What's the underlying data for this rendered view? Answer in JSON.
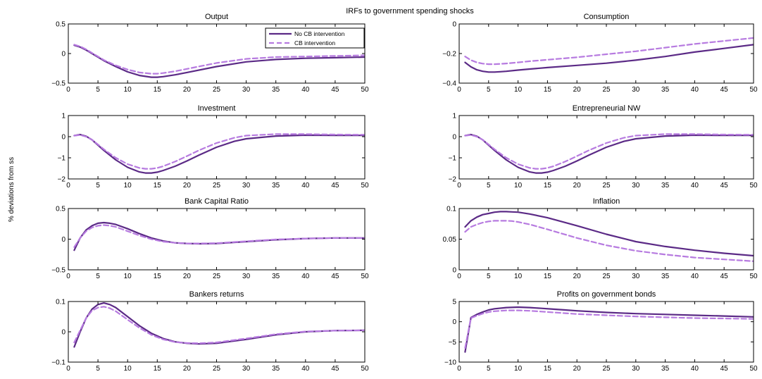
{
  "figure": {
    "title": "IRFs to government spending shocks",
    "ylabel": "% deviations from ss"
  },
  "legend": {
    "items": [
      {
        "label": "No CB intervention",
        "color": "#5b2a86",
        "dash": "solid"
      },
      {
        "label": "CB intervention",
        "color": "#b77be0",
        "dash": "dashed"
      }
    ]
  },
  "chart_data": [
    {
      "type": "line",
      "title": "Output",
      "xlim": [
        0,
        50
      ],
      "ylim": [
        -0.5,
        0.5
      ],
      "xticks": [
        0,
        5,
        10,
        15,
        20,
        25,
        30,
        35,
        40,
        45,
        50
      ],
      "yticks": [
        -0.5,
        0,
        0.5
      ],
      "ytick_labels": [
        "−0.5",
        "0",
        "0.5"
      ],
      "series": [
        {
          "name": "No CB intervention",
          "x": [
            1,
            2,
            3,
            4,
            5,
            6,
            8,
            10,
            12,
            14,
            15,
            16,
            18,
            20,
            25,
            30,
            35,
            40,
            45,
            50
          ],
          "values": [
            0.14,
            0.11,
            0.06,
            0.0,
            -0.06,
            -0.12,
            -0.22,
            -0.31,
            -0.37,
            -0.4,
            -0.4,
            -0.39,
            -0.36,
            -0.32,
            -0.22,
            -0.14,
            -0.1,
            -0.08,
            -0.07,
            -0.06
          ]
        },
        {
          "name": "CB intervention",
          "x": [
            1,
            2,
            3,
            4,
            5,
            6,
            8,
            10,
            12,
            14,
            15,
            16,
            18,
            20,
            25,
            30,
            35,
            40,
            45,
            50
          ],
          "values": [
            0.15,
            0.12,
            0.07,
            0.01,
            -0.05,
            -0.11,
            -0.2,
            -0.27,
            -0.32,
            -0.34,
            -0.34,
            -0.33,
            -0.3,
            -0.26,
            -0.16,
            -0.09,
            -0.06,
            -0.05,
            -0.04,
            -0.03
          ]
        }
      ]
    },
    {
      "type": "line",
      "title": "Consumption",
      "xlim": [
        0,
        50
      ],
      "ylim": [
        -0.4,
        0
      ],
      "xticks": [
        0,
        5,
        10,
        15,
        20,
        25,
        30,
        35,
        40,
        45,
        50
      ],
      "yticks": [
        -0.4,
        -0.2,
        0
      ],
      "ytick_labels": [
        "−0.4",
        "−0.2",
        "0"
      ],
      "series": [
        {
          "name": "No CB intervention",
          "x": [
            1,
            2,
            3,
            4,
            5,
            6,
            7,
            8,
            10,
            12,
            15,
            20,
            25,
            30,
            35,
            40,
            45,
            50
          ],
          "values": [
            -0.26,
            -0.29,
            -0.31,
            -0.32,
            -0.325,
            -0.325,
            -0.323,
            -0.32,
            -0.312,
            -0.305,
            -0.295,
            -0.28,
            -0.265,
            -0.245,
            -0.22,
            -0.19,
            -0.165,
            -0.14
          ]
        },
        {
          "name": "CB intervention",
          "x": [
            1,
            2,
            3,
            4,
            5,
            6,
            7,
            8,
            10,
            12,
            15,
            20,
            25,
            30,
            35,
            40,
            45,
            50
          ],
          "values": [
            -0.22,
            -0.245,
            -0.26,
            -0.268,
            -0.272,
            -0.272,
            -0.27,
            -0.267,
            -0.26,
            -0.252,
            -0.242,
            -0.225,
            -0.205,
            -0.185,
            -0.16,
            -0.135,
            -0.115,
            -0.095
          ]
        }
      ]
    },
    {
      "type": "line",
      "title": "Investment",
      "xlim": [
        0,
        50
      ],
      "ylim": [
        -2,
        1
      ],
      "xticks": [
        0,
        5,
        10,
        15,
        20,
        25,
        30,
        35,
        40,
        45,
        50
      ],
      "yticks": [
        -2,
        -1,
        0,
        1
      ],
      "ytick_labels": [
        "−2",
        "−1",
        "0",
        "1"
      ],
      "series": [
        {
          "name": "No CB intervention",
          "x": [
            1,
            2,
            3,
            4,
            5,
            6,
            8,
            10,
            12,
            13,
            14,
            15,
            16,
            18,
            20,
            22,
            25,
            28,
            30,
            35,
            40,
            45,
            50
          ],
          "values": [
            0.05,
            0.1,
            0.02,
            -0.15,
            -0.4,
            -0.65,
            -1.1,
            -1.45,
            -1.67,
            -1.72,
            -1.72,
            -1.68,
            -1.6,
            -1.4,
            -1.15,
            -0.88,
            -0.5,
            -0.22,
            -0.1,
            0.03,
            0.07,
            0.06,
            0.06
          ]
        },
        {
          "name": "CB intervention",
          "x": [
            1,
            2,
            3,
            4,
            5,
            6,
            8,
            10,
            12,
            13,
            14,
            15,
            16,
            18,
            20,
            22,
            25,
            28,
            30,
            35,
            40,
            45,
            50
          ],
          "values": [
            0.05,
            0.08,
            0.0,
            -0.15,
            -0.37,
            -0.6,
            -1.0,
            -1.3,
            -1.48,
            -1.52,
            -1.52,
            -1.48,
            -1.4,
            -1.18,
            -0.92,
            -0.65,
            -0.3,
            -0.05,
            0.05,
            0.12,
            0.12,
            0.1,
            0.09
          ]
        }
      ]
    },
    {
      "type": "line",
      "title": "Entrepreneurial NW",
      "xlim": [
        0,
        50
      ],
      "ylim": [
        -2,
        1
      ],
      "xticks": [
        0,
        5,
        10,
        15,
        20,
        25,
        30,
        35,
        40,
        45,
        50
      ],
      "yticks": [
        -2,
        -1,
        0,
        1
      ],
      "ytick_labels": [
        "−2",
        "−1",
        "0",
        "1"
      ],
      "series": [
        {
          "name": "No CB intervention",
          "x": [
            1,
            2,
            3,
            4,
            5,
            6,
            8,
            10,
            12,
            13,
            14,
            15,
            16,
            18,
            20,
            22,
            25,
            28,
            30,
            35,
            40,
            45,
            50
          ],
          "values": [
            0.05,
            0.1,
            0.02,
            -0.15,
            -0.4,
            -0.65,
            -1.1,
            -1.45,
            -1.67,
            -1.72,
            -1.72,
            -1.68,
            -1.6,
            -1.4,
            -1.15,
            -0.88,
            -0.5,
            -0.22,
            -0.1,
            0.03,
            0.07,
            0.06,
            0.06
          ]
        },
        {
          "name": "CB intervention",
          "x": [
            1,
            2,
            3,
            4,
            5,
            6,
            8,
            10,
            12,
            13,
            14,
            15,
            16,
            18,
            20,
            22,
            25,
            28,
            30,
            35,
            40,
            45,
            50
          ],
          "values": [
            0.05,
            0.08,
            0.0,
            -0.15,
            -0.37,
            -0.6,
            -1.0,
            -1.3,
            -1.48,
            -1.52,
            -1.52,
            -1.48,
            -1.4,
            -1.18,
            -0.92,
            -0.65,
            -0.3,
            -0.05,
            0.05,
            0.12,
            0.12,
            0.1,
            0.09
          ]
        }
      ]
    },
    {
      "type": "line",
      "title": "Bank Capital Ratio",
      "xlim": [
        0,
        50
      ],
      "ylim": [
        -0.5,
        0.5
      ],
      "xticks": [
        0,
        5,
        10,
        15,
        20,
        25,
        30,
        35,
        40,
        45,
        50
      ],
      "yticks": [
        -0.5,
        0,
        0.5
      ],
      "ytick_labels": [
        "−0.5",
        "0",
        "0.5"
      ],
      "series": [
        {
          "name": "No CB intervention",
          "x": [
            1,
            2,
            3,
            4,
            5,
            6,
            7,
            8,
            10,
            12,
            14,
            16,
            18,
            20,
            22,
            25,
            30,
            35,
            40,
            45,
            50
          ],
          "values": [
            -0.18,
            0.02,
            0.15,
            0.22,
            0.26,
            0.27,
            0.26,
            0.24,
            0.17,
            0.09,
            0.02,
            -0.03,
            -0.06,
            -0.07,
            -0.075,
            -0.07,
            -0.04,
            -0.01,
            0.01,
            0.02,
            0.02
          ]
        },
        {
          "name": "CB intervention",
          "x": [
            1,
            2,
            3,
            4,
            5,
            6,
            7,
            8,
            10,
            12,
            14,
            16,
            18,
            20,
            22,
            25,
            30,
            35,
            40,
            45,
            50
          ],
          "values": [
            -0.13,
            0.02,
            0.13,
            0.19,
            0.22,
            0.23,
            0.22,
            0.2,
            0.13,
            0.06,
            0.0,
            -0.04,
            -0.06,
            -0.07,
            -0.07,
            -0.065,
            -0.035,
            -0.005,
            0.01,
            0.02,
            0.02
          ]
        }
      ]
    },
    {
      "type": "line",
      "title": "Inflation",
      "xlim": [
        0,
        50
      ],
      "ylim": [
        0,
        0.1
      ],
      "xticks": [
        0,
        5,
        10,
        15,
        20,
        25,
        30,
        35,
        40,
        45,
        50
      ],
      "yticks": [
        0,
        0.05,
        0.1
      ],
      "ytick_labels": [
        "0",
        "0.05",
        "0.1"
      ],
      "series": [
        {
          "name": "No CB intervention",
          "x": [
            1,
            2,
            3,
            4,
            5,
            6,
            7,
            8,
            9,
            10,
            12,
            15,
            20,
            25,
            30,
            35,
            40,
            45,
            50
          ],
          "values": [
            0.07,
            0.08,
            0.086,
            0.09,
            0.092,
            0.094,
            0.095,
            0.095,
            0.0945,
            0.094,
            0.091,
            0.085,
            0.072,
            0.058,
            0.046,
            0.038,
            0.032,
            0.027,
            0.023
          ]
        },
        {
          "name": "CB intervention",
          "x": [
            1,
            2,
            3,
            4,
            5,
            6,
            7,
            8,
            9,
            10,
            12,
            15,
            20,
            25,
            30,
            35,
            40,
            45,
            50
          ],
          "values": [
            0.062,
            0.07,
            0.074,
            0.077,
            0.079,
            0.08,
            0.08,
            0.08,
            0.0795,
            0.078,
            0.074,
            0.066,
            0.052,
            0.04,
            0.031,
            0.025,
            0.02,
            0.017,
            0.014
          ]
        }
      ]
    },
    {
      "type": "line",
      "title": "Bankers returns",
      "xlim": [
        0,
        50
      ],
      "ylim": [
        -0.1,
        0.1
      ],
      "xticks": [
        0,
        5,
        10,
        15,
        20,
        25,
        30,
        35,
        40,
        45,
        50
      ],
      "yticks": [
        -0.1,
        0,
        0.1
      ],
      "ytick_labels": [
        "−0.1",
        "0",
        "0.1"
      ],
      "series": [
        {
          "name": "No CB intervention",
          "x": [
            1,
            2,
            3,
            4,
            5,
            6,
            7,
            8,
            10,
            12,
            14,
            16,
            18,
            20,
            22,
            25,
            30,
            35,
            40,
            45,
            50
          ],
          "values": [
            -0.05,
            0.0,
            0.045,
            0.075,
            0.09,
            0.095,
            0.09,
            0.08,
            0.05,
            0.02,
            -0.005,
            -0.022,
            -0.033,
            -0.038,
            -0.04,
            -0.038,
            -0.025,
            -0.01,
            0.0,
            0.004,
            0.005
          ]
        },
        {
          "name": "CB intervention",
          "x": [
            1,
            2,
            3,
            4,
            5,
            6,
            7,
            8,
            10,
            12,
            14,
            16,
            18,
            20,
            22,
            25,
            30,
            35,
            40,
            45,
            50
          ],
          "values": [
            -0.035,
            0.005,
            0.045,
            0.07,
            0.08,
            0.083,
            0.078,
            0.068,
            0.04,
            0.013,
            -0.01,
            -0.025,
            -0.034,
            -0.037,
            -0.038,
            -0.035,
            -0.022,
            -0.008,
            0.001,
            0.004,
            0.005
          ]
        }
      ]
    },
    {
      "type": "line",
      "title": "Profits on government bonds",
      "xlim": [
        0,
        50
      ],
      "ylim": [
        -10,
        5
      ],
      "xticks": [
        0,
        5,
        10,
        15,
        20,
        25,
        30,
        35,
        40,
        45,
        50
      ],
      "yticks": [
        -10,
        -5,
        0,
        5
      ],
      "ytick_labels": [
        "−10",
        "−5",
        "0",
        "5"
      ],
      "series": [
        {
          "name": "No CB intervention",
          "x": [
            1,
            2,
            3,
            4,
            5,
            6,
            8,
            10,
            12,
            14,
            16,
            18,
            20,
            25,
            30,
            35,
            40,
            45,
            50
          ],
          "values": [
            -7.5,
            1.0,
            1.8,
            2.4,
            2.9,
            3.2,
            3.5,
            3.6,
            3.5,
            3.3,
            3.1,
            2.9,
            2.7,
            2.3,
            2.0,
            1.8,
            1.6,
            1.4,
            1.2
          ]
        },
        {
          "name": "CB intervention",
          "x": [
            1,
            2,
            3,
            4,
            5,
            6,
            8,
            10,
            12,
            14,
            16,
            18,
            20,
            25,
            30,
            35,
            40,
            45,
            50
          ],
          "values": [
            -6.5,
            0.9,
            1.5,
            2.0,
            2.4,
            2.6,
            2.8,
            2.8,
            2.7,
            2.5,
            2.3,
            2.1,
            1.9,
            1.6,
            1.3,
            1.1,
            0.9,
            0.8,
            0.7
          ]
        }
      ]
    }
  ]
}
